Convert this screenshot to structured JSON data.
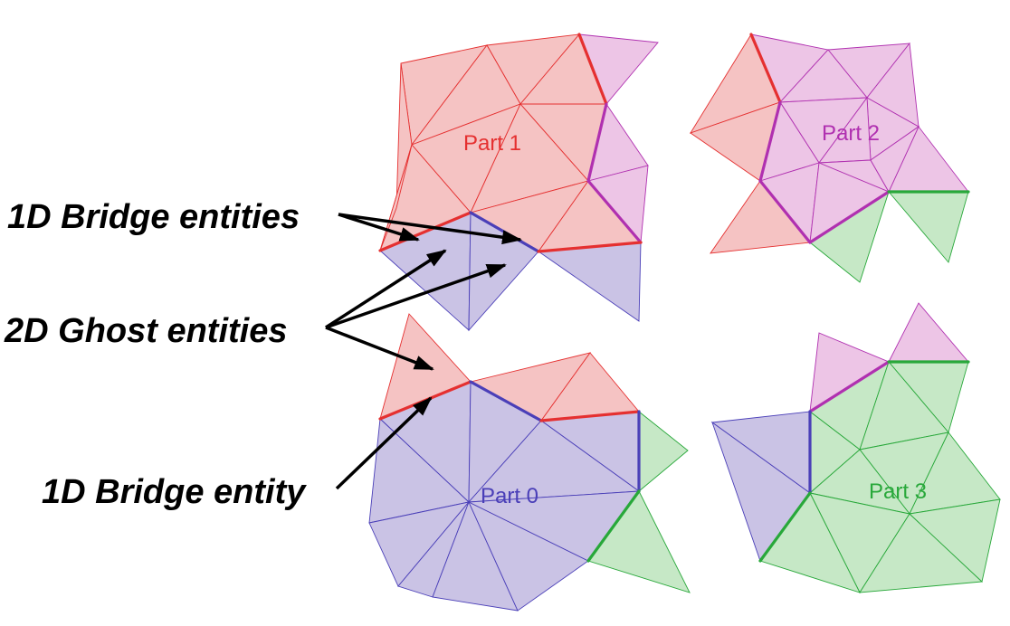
{
  "labels": {
    "bridge_entities": "1D Bridge entities",
    "ghost_entities": "2D Ghost entities",
    "bridge_entity": "1D Bridge entity"
  },
  "parts": {
    "part0": "Part 0",
    "part1": "Part 1",
    "part2": "Part 2",
    "part3": "Part 3"
  },
  "colors": {
    "part0_fill": "#cac3e5",
    "part0_edge": "#4a3fb8",
    "part1_fill": "#f5c3c3",
    "part1_edge": "#e53030",
    "part2_fill": "#edc5e6",
    "part2_edge": "#b030b0",
    "part3_fill": "#c6e8c6",
    "part3_edge": "#28a83a"
  }
}
